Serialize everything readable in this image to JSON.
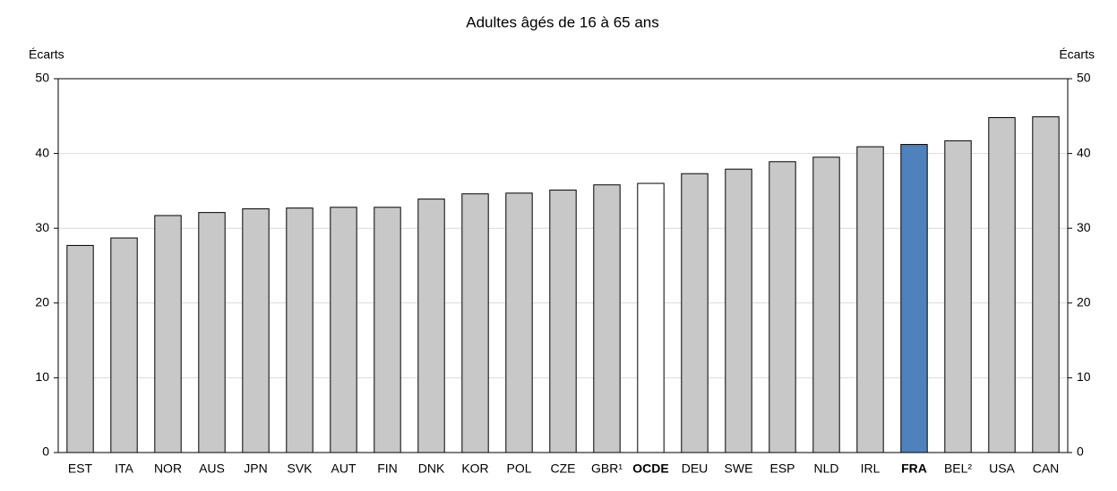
{
  "chart_data": {
    "type": "bar",
    "title": "Adultes âgés de 16 à 65 ans",
    "y_label": "Écarts",
    "y2_label": "Écarts",
    "categories": [
      "EST",
      "ITA",
      "NOR",
      "AUS",
      "JPN",
      "SVK",
      "AUT",
      "FIN",
      "DNK",
      "KOR",
      "POL",
      "CZE",
      "GBR¹",
      "OCDE",
      "DEU",
      "SWE",
      "ESP",
      "NLD",
      "IRL",
      "FRA",
      "BEL²",
      "USA",
      "CAN"
    ],
    "values": [
      27.7,
      28.7,
      31.7,
      32.1,
      32.6,
      32.7,
      32.8,
      32.8,
      33.9,
      34.6,
      34.7,
      35.1,
      35.8,
      36.0,
      37.3,
      37.9,
      38.9,
      39.5,
      40.9,
      41.2,
      41.7,
      44.8,
      44.9
    ],
    "colors": [
      "#c8c8c8",
      "#c8c8c8",
      "#c8c8c8",
      "#c8c8c8",
      "#c8c8c8",
      "#c8c8c8",
      "#c8c8c8",
      "#c8c8c8",
      "#c8c8c8",
      "#c8c8c8",
      "#c8c8c8",
      "#c8c8c8",
      "#c8c8c8",
      "#ffffff",
      "#c8c8c8",
      "#c8c8c8",
      "#c8c8c8",
      "#c8c8c8",
      "#c8c8c8",
      "#4f81bd",
      "#c8c8c8",
      "#c8c8c8",
      "#c8c8c8"
    ],
    "bold_categories": [
      13,
      19
    ],
    "ylim": [
      0,
      50
    ],
    "yticks": [
      0,
      10,
      20,
      30,
      40,
      50
    ],
    "grid": true
  }
}
